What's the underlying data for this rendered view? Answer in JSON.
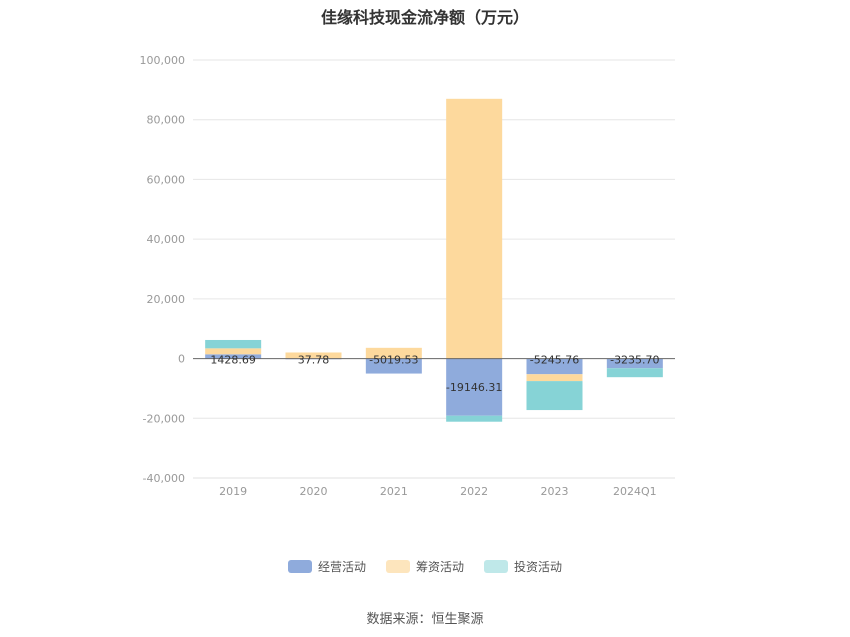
{
  "chart_data": {
    "type": "bar",
    "stacked": true,
    "title": "佳缘科技现金流净额（万元）",
    "categories": [
      "2019",
      "2020",
      "2021",
      "2022",
      "2023",
      "2024Q1"
    ],
    "ylim": [
      -40000,
      100000
    ],
    "yticks": [
      100000,
      80000,
      60000,
      40000,
      20000,
      0,
      -20000,
      -40000
    ],
    "ytick_labels": [
      "100,000",
      "80,000",
      "60,000",
      "40,000",
      "20,000",
      "0",
      "-20,000",
      "-40,000"
    ],
    "grid": true,
    "legend_position": "bottom",
    "series": [
      {
        "name": "经营活动",
        "color": "#8fabdc",
        "values": [
          1428.69,
          37.78,
          -5019.53,
          -19146.31,
          -5245.76,
          -3235.7
        ]
      },
      {
        "name": "筹资活动",
        "color": "#fdd99d",
        "values": [
          2000,
          2000,
          3600,
          87000,
          -2300,
          0
        ]
      },
      {
        "name": "投资活动",
        "color": "#86d3d6",
        "values": [
          2800,
          0,
          0,
          -2000,
          -9700,
          -3000
        ]
      }
    ],
    "data_labels": [
      "1428.69",
      "37.78",
      "-5019.53",
      "-19146.31",
      "-5245.76",
      "-3235.70"
    ]
  },
  "source": "数据来源：恒生聚源"
}
